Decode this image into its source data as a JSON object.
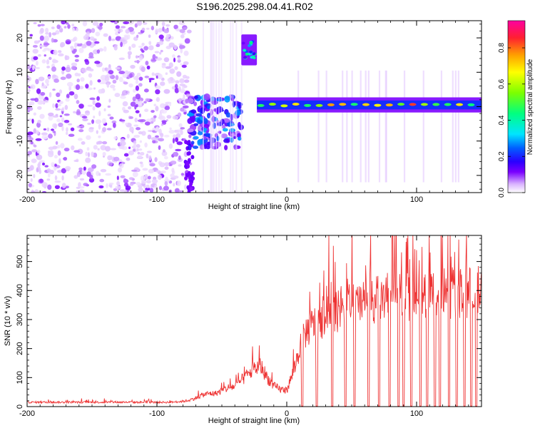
{
  "figure_title": "S196.2025.298.04.41.R02",
  "chart_data": [
    {
      "type": "heatmap",
      "title": "S196.2025.298.04.41.R02",
      "xlabel": "Height of straight line (km)",
      "ylabel": "Frequency (Hz)",
      "xlim": [
        -200,
        150
      ],
      "ylim": [
        -25,
        25
      ],
      "xticks": [
        -200,
        -100,
        0,
        100
      ],
      "xtick_labels": [
        "-200",
        "-100",
        "0",
        "100"
      ],
      "yticks": [
        -20,
        -10,
        0,
        10,
        20
      ],
      "ytick_labels": [
        "-20",
        "-10",
        "0",
        "10",
        "20"
      ],
      "colorbar": {
        "label": "Normalized spectral amplitude",
        "range": [
          0,
          0.95
        ],
        "ticks": [
          0,
          0.2,
          0.4,
          0.6,
          0.8
        ],
        "tick_labels": [
          "0.0",
          "0.2",
          "0.4",
          "0.6",
          "0.8"
        ],
        "colormap": [
          "#ffffff",
          "#d9b3ff",
          "#7a00ff",
          "#2a00ff",
          "#0060ff",
          "#00e5ff",
          "#00ff80",
          "#7cff00",
          "#ffff00",
          "#ffa000",
          "#ff2030",
          "#ff00a0"
        ]
      },
      "features": [
        {
          "name": "noise-background",
          "x_range": [
            -200,
            -75
          ],
          "freq_range": [
            -25,
            25
          ],
          "amplitude": 0.1
        },
        {
          "name": "blob-cluster",
          "x_range": [
            -75,
            -35
          ],
          "freq_range": [
            -12,
            3
          ],
          "amplitude": 0.3
        },
        {
          "name": "high-freq-patch",
          "x_range": [
            -35,
            -23
          ],
          "freq_range": [
            14,
            19
          ],
          "amplitude": 0.35
        },
        {
          "name": "signal-band",
          "x_range": [
            -23,
            150
          ],
          "freq_center": 0.5,
          "amplitude": 0.8
        }
      ]
    },
    {
      "type": "line",
      "xlabel": "Height of straight line (km)",
      "ylabel": "SNR (10 * v/v)",
      "xlim": [
        -200,
        150
      ],
      "ylim": [
        0,
        590
      ],
      "xticks": [
        -200,
        -100,
        0,
        100
      ],
      "xtick_labels": [
        "-200",
        "-100",
        "0",
        "100"
      ],
      "yticks": [
        0,
        100,
        200,
        300,
        400,
        500
      ],
      "ytick_labels": [
        "0",
        "100",
        "200",
        "300",
        "400",
        "500"
      ],
      "series": [
        {
          "name": "SNR",
          "color": "#ee3333",
          "x": [
            -200,
            -180,
            -160,
            -140,
            -120,
            -100,
            -90,
            -80,
            -75,
            -70,
            -65,
            -60,
            -55,
            -50,
            -45,
            -40,
            -35,
            -30,
            -25,
            -20,
            -15,
            -10,
            -5,
            0,
            5,
            10,
            15,
            20,
            30,
            40,
            50,
            60,
            70,
            80,
            90,
            100,
            110,
            120,
            130,
            140,
            150
          ],
          "values": [
            15,
            15,
            15,
            15,
            15,
            15,
            15,
            18,
            22,
            30,
            40,
            45,
            45,
            55,
            65,
            70,
            90,
            110,
            130,
            140,
            100,
            70,
            60,
            55,
            120,
            200,
            260,
            280,
            310,
            330,
            350,
            360,
            370,
            380,
            375,
            385,
            380,
            390,
            385,
            395,
            400
          ]
        }
      ],
      "dropouts_x": [
        12,
        23,
        35,
        45,
        52,
        63,
        71,
        79,
        86,
        90,
        96,
        103,
        108,
        114,
        118,
        125,
        131,
        137,
        142,
        146
      ],
      "spike_peak": 590
    }
  ]
}
